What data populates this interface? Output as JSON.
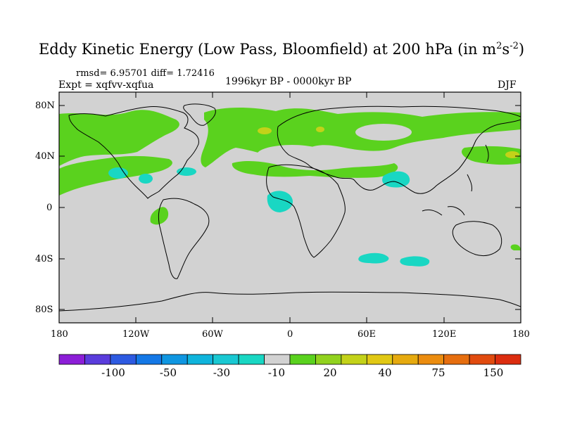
{
  "title_prefix": "Eddy Kinetic Energy (Low Pass, Bloomfield) at 200 hPa (in m",
  "title_sup1": "2",
  "title_mid": "s",
  "title_sup2": "-2",
  "title_suffix": ")",
  "stats": "rmsd= 6.95701 diff= 1.72416",
  "experiment": "Expt = xqfvv-xqfua",
  "period": "1996kyr BP - 0000kyr BP",
  "season": "DJF",
  "lat_labels": [
    "80N",
    "40N",
    "0",
    "40S",
    "80S"
  ],
  "lon_labels": [
    "180",
    "120W",
    "60W",
    "0",
    "60E",
    "120E",
    "180"
  ],
  "colorbar": {
    "colors": [
      "#8c1ed7",
      "#5a3cdc",
      "#2d5ae1",
      "#1478e6",
      "#0f96e1",
      "#0fb4dc",
      "#19c8d2",
      "#19d7c3",
      "#d2d2d2",
      "#5ad21e",
      "#91d21e",
      "#c3d219",
      "#e1c814",
      "#e6aa0f",
      "#eb8c0f",
      "#e66e0f",
      "#e14b0f",
      "#dc2d0f"
    ],
    "labels": [
      "-100",
      "-50",
      "-30",
      "-10",
      "20",
      "40",
      "75",
      "150"
    ]
  },
  "map_colors": {
    "ocean_bg": "#d2d2d2",
    "positive": "#5ad21e",
    "positive_strong": "#c3d219",
    "negative": "#19d7c3"
  }
}
